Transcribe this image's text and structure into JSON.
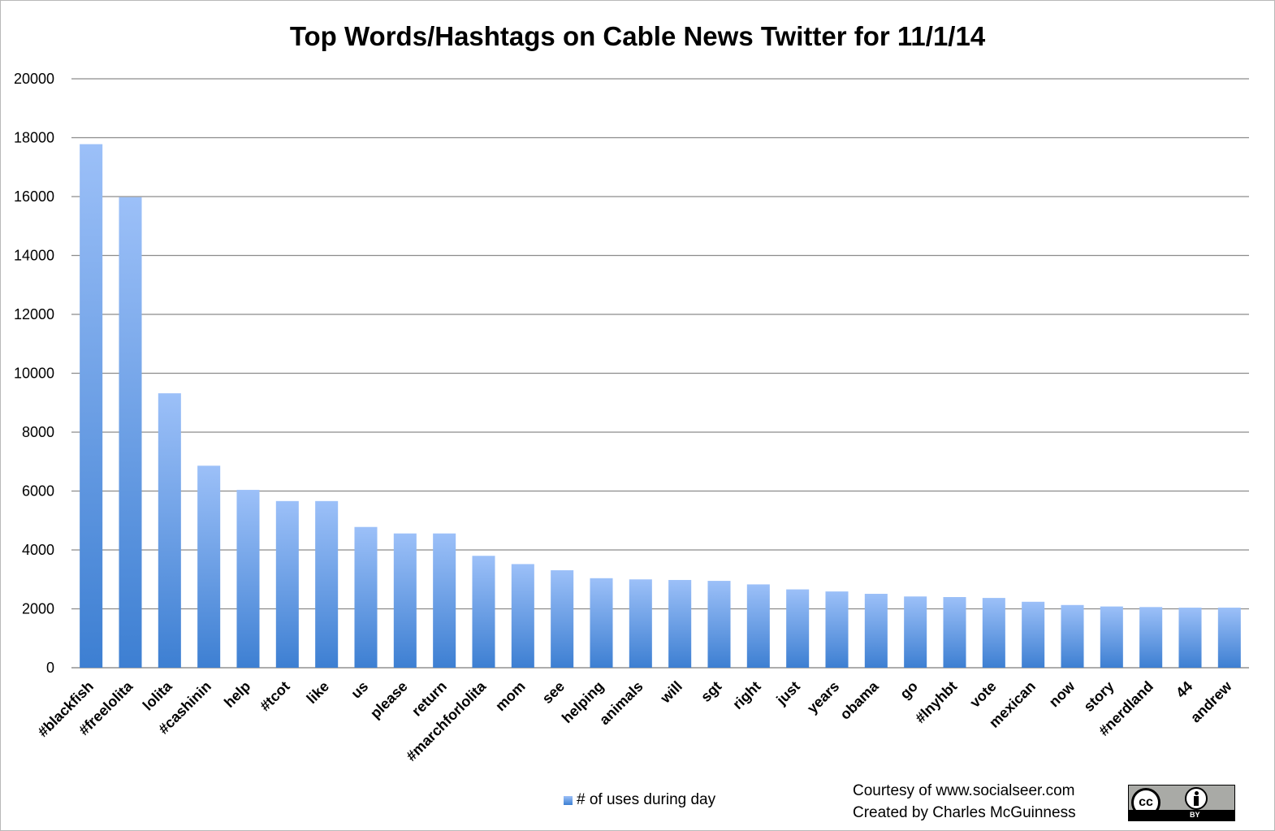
{
  "chart_data": {
    "type": "bar",
    "title": "Top Words/Hashtags on Cable News Twitter for 11/1/14",
    "xlabel": "",
    "ylabel": "",
    "ylim": [
      0,
      20000
    ],
    "yticks": [
      0,
      2000,
      4000,
      6000,
      8000,
      10000,
      12000,
      14000,
      16000,
      18000,
      20000
    ],
    "grid": true,
    "legend_position": "bottom",
    "categories": [
      "#blackfish",
      "#freelolita",
      "lolita",
      "#cashinin",
      "help",
      "#tcot",
      "like",
      "us",
      "please",
      "return",
      "#marchforlolita",
      "mom",
      "see",
      "helping",
      "animals",
      "will",
      "sgt",
      "right",
      "just",
      "years",
      "obama",
      "go",
      "#lnyhbt",
      "vote",
      "mexican",
      "now",
      "story",
      "#nerdland",
      "44",
      "andrew"
    ],
    "series": [
      {
        "name": "# of uses during day",
        "values": [
          17780,
          15980,
          9320,
          6860,
          6040,
          5660,
          5660,
          4780,
          4560,
          4560,
          3800,
          3520,
          3310,
          3040,
          3000,
          2980,
          2950,
          2830,
          2660,
          2590,
          2510,
          2420,
          2400,
          2370,
          2240,
          2130,
          2080,
          2060,
          2040,
          2040
        ]
      }
    ],
    "colors": {
      "bar_top": "#9cc0f8",
      "bar_bottom": "#3d7fd2",
      "grid": "#8c8c8c"
    }
  },
  "footer": {
    "credit_line1": "Courtesy of www.socialseer.com",
    "credit_line2": "Created by Charles McGuinness",
    "license_badge": {
      "cc_text": "cc",
      "by_text": "BY"
    }
  }
}
